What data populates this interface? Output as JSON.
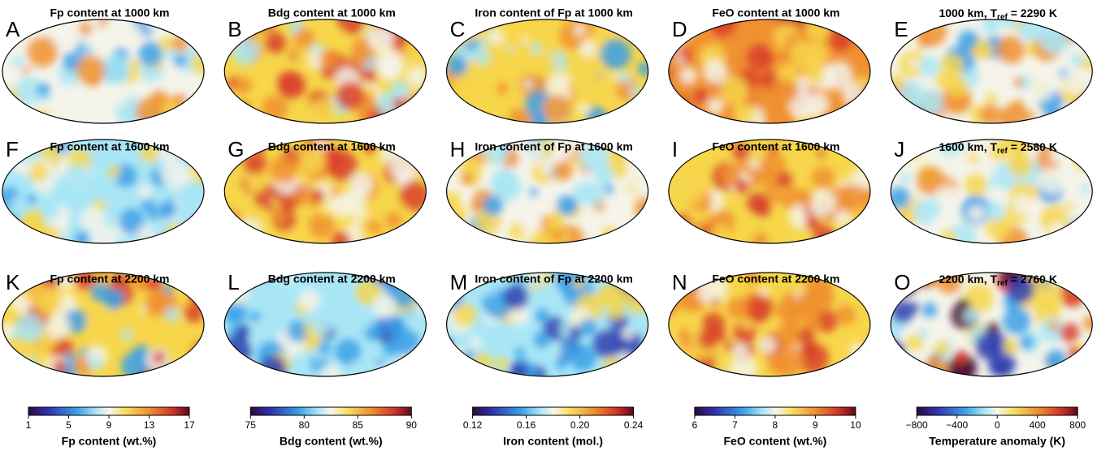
{
  "panels": [
    {
      "letter": "A",
      "title": "Fp content at 1000 km"
    },
    {
      "letter": "B",
      "title": "Bdg content at 1000 km"
    },
    {
      "letter": "C",
      "title": "Iron content of Fp at 1000 km"
    },
    {
      "letter": "D",
      "title": "FeO content at 1000 km"
    },
    {
      "letter": "E",
      "title": {
        "main": "1000 km, T",
        "sub": "ref",
        "tail": " = 2290 K"
      }
    },
    {
      "letter": "F",
      "title": "Fp content at 1600 km"
    },
    {
      "letter": "G",
      "title": "Bdg content at 1600 km"
    },
    {
      "letter": "H",
      "title": "Iron content of Fp at 1600 km"
    },
    {
      "letter": "I",
      "title": "FeO content at 1600 km"
    },
    {
      "letter": "J",
      "title": {
        "main": "1600 km, T",
        "sub": "ref",
        "tail": " = 2580 K"
      }
    },
    {
      "letter": "K",
      "title": "Fp content at 2200 km"
    },
    {
      "letter": "L",
      "title": "Bdg content at 2200 km"
    },
    {
      "letter": "M",
      "title": "Iron content of Fp at 2200 km"
    },
    {
      "letter": "N",
      "title": "FeO content at 2200 km"
    },
    {
      "letter": "O",
      "title": {
        "main": "2200 km, T",
        "sub": "ref",
        "tail": " = 2760 K"
      }
    }
  ],
  "colorbars": [
    {
      "label": "Fp content (wt.%)",
      "lim": [
        1,
        17
      ],
      "ticks": [
        1,
        5,
        9,
        13,
        17
      ]
    },
    {
      "label": "Bdg content (wt.%)",
      "lim": [
        75,
        90
      ],
      "ticks": [
        75,
        80,
        85,
        90
      ]
    },
    {
      "label": "Iron content (mol.)",
      "lim": [
        0.12,
        0.24
      ],
      "ticks": [
        {
          "value": 0.12,
          "label": "0.12"
        },
        {
          "value": 0.16,
          "label": "0.16"
        },
        {
          "value": 0.2,
          "label": "0.20"
        },
        {
          "value": 0.24,
          "label": "0.24"
        }
      ]
    },
    {
      "label": "FeO content (wt.%)",
      "lim": [
        6,
        10
      ],
      "ticks": [
        6,
        7,
        8,
        9,
        10
      ]
    },
    {
      "label": "Temperature anomaly (K)",
      "lim": [
        -800,
        800
      ],
      "ticks": [
        {
          "value": -800,
          "label": "−800"
        },
        {
          "value": -400,
          "label": "−400"
        },
        0,
        400,
        800
      ]
    }
  ]
}
